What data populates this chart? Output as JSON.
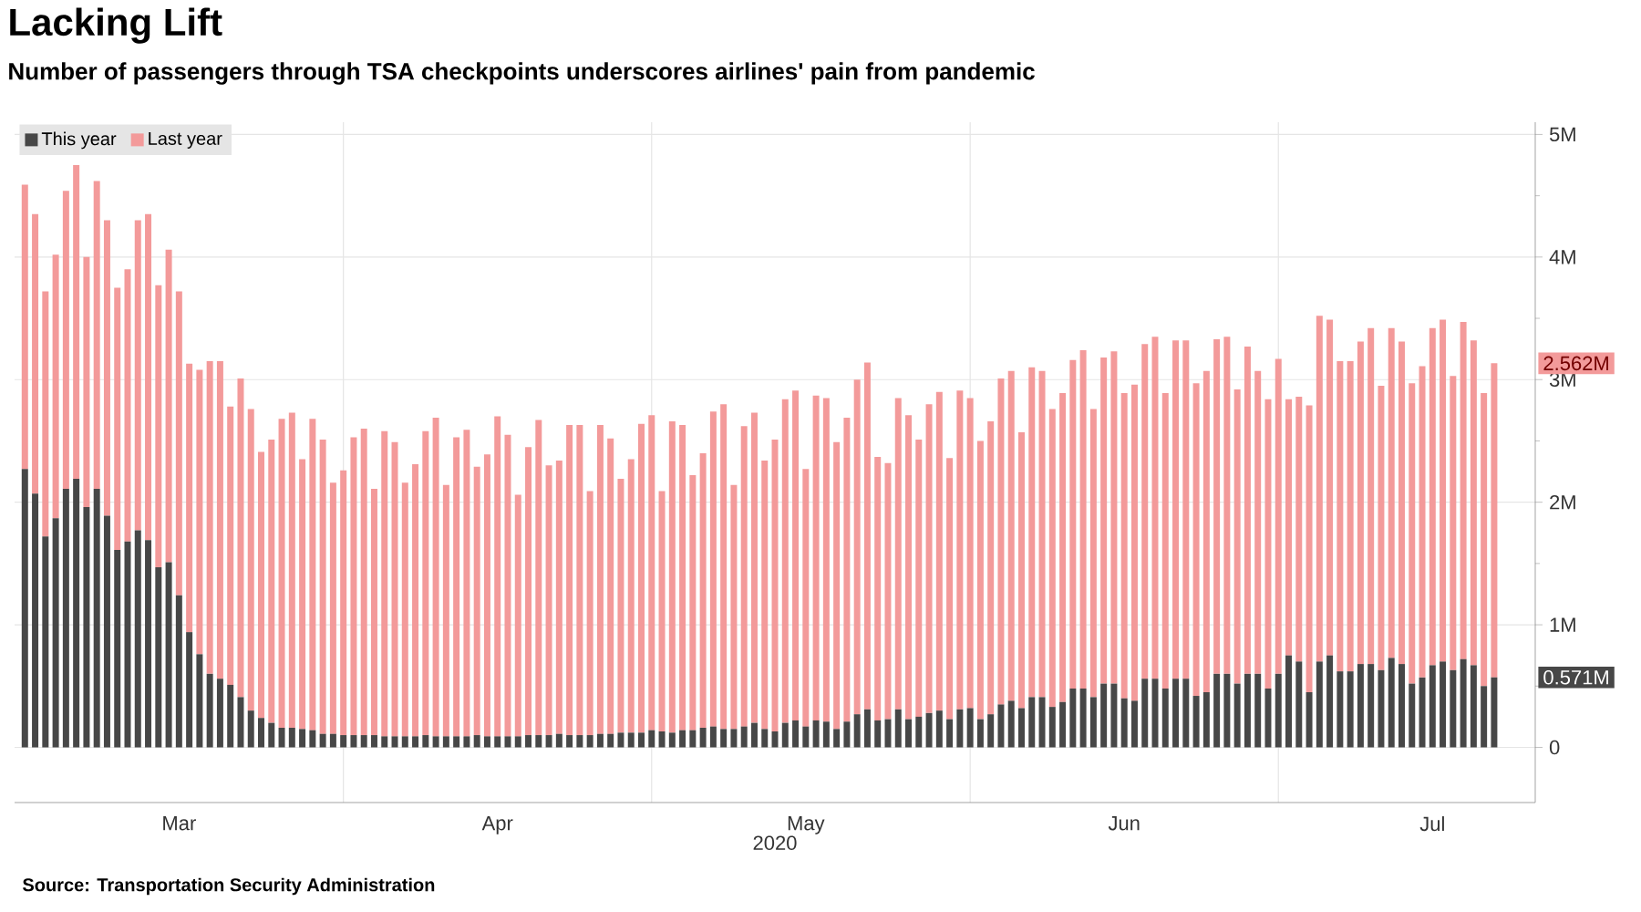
{
  "chart_data": {
    "type": "bar",
    "stacked": true,
    "title": "Lacking Lift",
    "subtitle": "Number of passengers through TSA checkpoints underscores airlines' pain from pandemic",
    "xlabel": "2020",
    "x": [
      "2020-03-01",
      "2020-03-02",
      "2020-03-03",
      "2020-03-04",
      "2020-03-05",
      "2020-03-06",
      "2020-03-07",
      "2020-03-08",
      "2020-03-09",
      "2020-03-10",
      "2020-03-11",
      "2020-03-12",
      "2020-03-13",
      "2020-03-14",
      "2020-03-15",
      "2020-03-16",
      "2020-03-17",
      "2020-03-18",
      "2020-03-19",
      "2020-03-20",
      "2020-03-21",
      "2020-03-22",
      "2020-03-23",
      "2020-03-24",
      "2020-03-25",
      "2020-03-26",
      "2020-03-27",
      "2020-03-28",
      "2020-03-29",
      "2020-03-30",
      "2020-03-31",
      "2020-04-01",
      "2020-04-02",
      "2020-04-03",
      "2020-04-04",
      "2020-04-05",
      "2020-04-06",
      "2020-04-07",
      "2020-04-08",
      "2020-04-09",
      "2020-04-10",
      "2020-04-11",
      "2020-04-12",
      "2020-04-13",
      "2020-04-14",
      "2020-04-15",
      "2020-04-16",
      "2020-04-17",
      "2020-04-18",
      "2020-04-19",
      "2020-04-20",
      "2020-04-21",
      "2020-04-22",
      "2020-04-23",
      "2020-04-24",
      "2020-04-25",
      "2020-04-26",
      "2020-04-27",
      "2020-04-28",
      "2020-04-29",
      "2020-04-30",
      "2020-05-01",
      "2020-05-02",
      "2020-05-03",
      "2020-05-04",
      "2020-05-05",
      "2020-05-06",
      "2020-05-07",
      "2020-05-08",
      "2020-05-09",
      "2020-05-10",
      "2020-05-11",
      "2020-05-12",
      "2020-05-13",
      "2020-05-14",
      "2020-05-15",
      "2020-05-16",
      "2020-05-17",
      "2020-05-18",
      "2020-05-19",
      "2020-05-20",
      "2020-05-21",
      "2020-05-22",
      "2020-05-23",
      "2020-05-24",
      "2020-05-25",
      "2020-05-26",
      "2020-05-27",
      "2020-05-28",
      "2020-05-29",
      "2020-05-30",
      "2020-05-31",
      "2020-06-01",
      "2020-06-02",
      "2020-06-03",
      "2020-06-04",
      "2020-06-05",
      "2020-06-06",
      "2020-06-07",
      "2020-06-08",
      "2020-06-09",
      "2020-06-10",
      "2020-06-11",
      "2020-06-12",
      "2020-06-13",
      "2020-06-14",
      "2020-06-15",
      "2020-06-16",
      "2020-06-17",
      "2020-06-18",
      "2020-06-19",
      "2020-06-20",
      "2020-06-21",
      "2020-06-22",
      "2020-06-23",
      "2020-06-24",
      "2020-06-25",
      "2020-06-26",
      "2020-06-27",
      "2020-06-28",
      "2020-06-29",
      "2020-06-30",
      "2020-07-01",
      "2020-07-02",
      "2020-07-03",
      "2020-07-04",
      "2020-07-05",
      "2020-07-06",
      "2020-07-07",
      "2020-07-08",
      "2020-07-09",
      "2020-07-10",
      "2020-07-11",
      "2020-07-12",
      "2020-07-13",
      "2020-07-14",
      "2020-07-15",
      "2020-07-16",
      "2020-07-17",
      "2020-07-18",
      "2020-07-19",
      "2020-07-20",
      "2020-07-21",
      "2020-07-22"
    ],
    "series": [
      {
        "name": "This year",
        "color": "#474747",
        "values": [
          2.27,
          2.07,
          1.72,
          1.87,
          2.11,
          2.19,
          1.96,
          2.11,
          1.89,
          1.61,
          1.68,
          1.77,
          1.69,
          1.47,
          1.51,
          1.24,
          0.94,
          0.76,
          0.6,
          0.56,
          0.51,
          0.41,
          0.3,
          0.24,
          0.2,
          0.16,
          0.16,
          0.15,
          0.14,
          0.11,
          0.11,
          0.1,
          0.1,
          0.1,
          0.1,
          0.09,
          0.09,
          0.09,
          0.09,
          0.1,
          0.09,
          0.09,
          0.09,
          0.09,
          0.1,
          0.09,
          0.09,
          0.09,
          0.09,
          0.1,
          0.1,
          0.1,
          0.11,
          0.1,
          0.1,
          0.1,
          0.11,
          0.11,
          0.12,
          0.12,
          0.12,
          0.14,
          0.13,
          0.12,
          0.14,
          0.14,
          0.16,
          0.17,
          0.15,
          0.15,
          0.17,
          0.2,
          0.15,
          0.13,
          0.2,
          0.22,
          0.17,
          0.22,
          0.21,
          0.15,
          0.21,
          0.27,
          0.31,
          0.22,
          0.23,
          0.31,
          0.23,
          0.25,
          0.28,
          0.3,
          0.23,
          0.31,
          0.32,
          0.23,
          0.27,
          0.35,
          0.38,
          0.32,
          0.41,
          0.41,
          0.33,
          0.37,
          0.48,
          0.48,
          0.41,
          0.52,
          0.52,
          0.4,
          0.38,
          0.56,
          0.56,
          0.48,
          0.56,
          0.56,
          0.42,
          0.45,
          0.6,
          0.6,
          0.52,
          0.6,
          0.6,
          0.48,
          0.6,
          0.75,
          0.7,
          0.45,
          0.7,
          0.75,
          0.62,
          0.62,
          0.68,
          0.68,
          0.63,
          0.73,
          0.68,
          0.52,
          0.57,
          0.67,
          0.7,
          0.63,
          0.72,
          0.67,
          0.5,
          0.571
        ]
      },
      {
        "name": "Last year",
        "color": "#f39a9a",
        "values": [
          2.32,
          2.28,
          2.0,
          2.15,
          2.43,
          2.56,
          2.04,
          2.51,
          2.41,
          2.14,
          2.22,
          2.53,
          2.66,
          2.3,
          2.55,
          2.48,
          2.19,
          2.32,
          2.55,
          2.59,
          2.27,
          2.6,
          2.46,
          2.17,
          2.31,
          2.52,
          2.57,
          2.2,
          2.54,
          2.4,
          2.05,
          2.16,
          2.43,
          2.5,
          2.01,
          2.49,
          2.4,
          2.07,
          2.22,
          2.48,
          2.6,
          2.05,
          2.44,
          2.5,
          2.19,
          2.3,
          2.61,
          2.46,
          1.97,
          2.35,
          2.57,
          2.2,
          2.23,
          2.53,
          2.53,
          1.99,
          2.52,
          2.41,
          2.07,
          2.23,
          2.52,
          2.57,
          1.96,
          2.54,
          2.49,
          2.08,
          2.24,
          2.57,
          2.65,
          1.99,
          2.45,
          2.53,
          2.19,
          2.38,
          2.64,
          2.69,
          2.1,
          2.65,
          2.64,
          2.34,
          2.48,
          2.73,
          2.83,
          2.15,
          2.09,
          2.54,
          2.48,
          2.26,
          2.52,
          2.6,
          2.13,
          2.6,
          2.53,
          2.27,
          2.39,
          2.66,
          2.69,
          2.25,
          2.69,
          2.66,
          2.43,
          2.52,
          2.68,
          2.76,
          2.35,
          2.66,
          2.71,
          2.49,
          2.58,
          2.73,
          2.79,
          2.41,
          2.76,
          2.76,
          2.55,
          2.62,
          2.73,
          2.75,
          2.4,
          2.67,
          2.47,
          2.36,
          2.57,
          2.09,
          2.16,
          2.34,
          2.82,
          2.74,
          2.53,
          2.53,
          2.63,
          2.74,
          2.32,
          2.69,
          2.63,
          2.45,
          2.54,
          2.75,
          2.79,
          2.4,
          2.75,
          2.65,
          2.39,
          2.562
        ]
      }
    ],
    "xlim": [
      "2020-02-29",
      "2020-07-26"
    ],
    "xticks": [
      {
        "value": "2020-03-16",
        "label": "Mar"
      },
      {
        "value": "2020-04-01",
        "label": null
      },
      {
        "value": "2020-04-16",
        "label": "Apr"
      },
      {
        "value": "2020-05-01",
        "label": null
      },
      {
        "value": "2020-05-16",
        "label": "May"
      },
      {
        "value": "2020-06-01",
        "label": null
      },
      {
        "value": "2020-06-16",
        "label": "Jun"
      },
      {
        "value": "2020-07-01",
        "label": null
      },
      {
        "value": "2020-07-16",
        "label": "Jul"
      }
    ],
    "ylim": [
      -0.45,
      5.1
    ],
    "yticks": [
      0,
      {
        "value": 0.5,
        "label": null
      },
      {
        "value": 1,
        "label": "1M"
      },
      {
        "value": 1.5,
        "label": null
      },
      {
        "value": 2,
        "label": "2M"
      },
      {
        "value": 2.5,
        "label": null
      },
      {
        "value": 3,
        "label": "3M"
      },
      {
        "value": 3.5,
        "label": null
      },
      {
        "value": 4,
        "label": "4M"
      },
      {
        "value": 4.5,
        "label": null
      },
      {
        "value": 5,
        "label": "5M"
      }
    ],
    "grid": true,
    "legend": "top left",
    "annotations": [
      {
        "text": "2.562M",
        "x": "2020-07-22",
        "y": 3.133
      },
      {
        "text": "0.571M",
        "x": "2020-07-22",
        "y": 0.571
      },
      "Source: Transportation Security Administration"
    ]
  }
}
